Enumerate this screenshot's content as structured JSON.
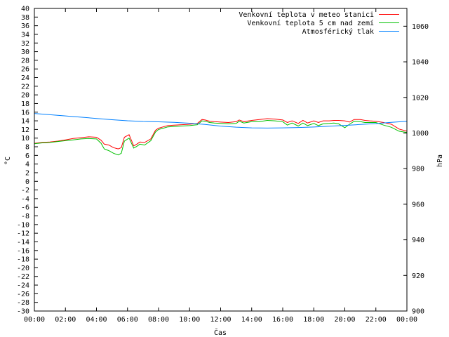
{
  "chart_data": {
    "type": "line",
    "title": "",
    "xlabel": "Čas",
    "ylabel": "°C",
    "y2label": "hPa",
    "grid": false,
    "legend_position": "top-right",
    "xlim": [
      0,
      24
    ],
    "ylim": [
      -30,
      40
    ],
    "y2lim": [
      900,
      1070
    ],
    "x_ticks": [
      "00:00",
      "02:00",
      "04:00",
      "06:00",
      "08:00",
      "10:00",
      "12:00",
      "14:00",
      "16:00",
      "18:00",
      "20:00",
      "22:00",
      "00:00"
    ],
    "y_ticks": [
      -30,
      -28,
      -26,
      -24,
      -22,
      -20,
      -18,
      -16,
      -14,
      -12,
      -10,
      -8,
      -6,
      -4,
      -2,
      0,
      2,
      4,
      6,
      8,
      10,
      12,
      14,
      16,
      18,
      20,
      22,
      24,
      26,
      28,
      30,
      32,
      34,
      36,
      38,
      40
    ],
    "y2_ticks": [
      900,
      920,
      940,
      960,
      980,
      1000,
      1020,
      1040,
      1060
    ],
    "series": [
      {
        "name": "Venkovní teplota v meteo stanici",
        "color": "#ff0000",
        "axis": "left",
        "x": [
          0,
          0.5,
          1,
          1.5,
          2,
          2.5,
          3,
          3.5,
          4,
          4.3,
          4.5,
          4.8,
          5.1,
          5.4,
          5.6,
          5.8,
          6.1,
          6.4,
          6.6,
          6.8,
          7.1,
          7.5,
          7.8,
          8,
          8.3,
          8.6,
          9,
          9.5,
          10,
          10.5,
          10.8,
          11,
          11.3,
          11.6,
          12,
          12.5,
          13,
          13.2,
          13.5,
          14,
          14.5,
          15,
          15.5,
          16,
          16.3,
          16.6,
          17,
          17.3,
          17.6,
          18,
          18.3,
          18.6,
          19,
          19.3,
          19.6,
          20,
          20.3,
          20.6,
          21,
          21.3,
          21.6,
          22,
          22.5,
          23,
          23.5,
          24
        ],
        "values": [
          8.8,
          9,
          9.1,
          9.3,
          9.6,
          9.9,
          10.1,
          10.3,
          10.2,
          9.5,
          8.6,
          8.4,
          7.8,
          7.5,
          7.8,
          10.2,
          10.8,
          8.2,
          8.6,
          9.1,
          9,
          9.8,
          11.8,
          12.3,
          12.6,
          12.9,
          13,
          13.1,
          13.2,
          13.4,
          14.3,
          14.2,
          13.9,
          13.8,
          13.7,
          13.6,
          13.8,
          14.2,
          13.8,
          14.1,
          14.3,
          14.5,
          14.4,
          14.2,
          13.6,
          14,
          13.4,
          14.1,
          13.5,
          14,
          13.6,
          14,
          14,
          14.1,
          14.1,
          14,
          13.7,
          14.3,
          14.3,
          14.1,
          14,
          13.9,
          13.6,
          13.2,
          12.1,
          11.6
        ]
      },
      {
        "name": "Venkovní teplota 5 cm nad zemí",
        "color": "#00c000",
        "axis": "left",
        "x": [
          0,
          0.5,
          1,
          1.5,
          2,
          2.5,
          3,
          3.5,
          4,
          4.3,
          4.5,
          4.8,
          5.1,
          5.4,
          5.6,
          5.8,
          6.1,
          6.4,
          6.6,
          6.8,
          7.1,
          7.5,
          7.8,
          8,
          8.3,
          8.6,
          9,
          9.5,
          10,
          10.5,
          10.8,
          11,
          11.3,
          11.6,
          12,
          12.5,
          13,
          13.2,
          13.5,
          14,
          14.5,
          15,
          15.5,
          16,
          16.3,
          16.6,
          17,
          17.3,
          17.6,
          18,
          18.3,
          18.6,
          19,
          19.3,
          19.6,
          20,
          20.3,
          20.6,
          21,
          21.3,
          21.6,
          22,
          22.5,
          23,
          23.5,
          24
        ],
        "values": [
          8.7,
          8.9,
          9,
          9.2,
          9.4,
          9.6,
          9.8,
          9.9,
          9.8,
          8.8,
          7.5,
          7.1,
          6.5,
          6.1,
          6.5,
          9.3,
          10,
          7.7,
          8.1,
          8.6,
          8.4,
          9.4,
          11.4,
          12,
          12.3,
          12.6,
          12.7,
          12.8,
          12.9,
          13.1,
          14,
          13.9,
          13.6,
          13.5,
          13.4,
          13.3,
          13.4,
          13.9,
          13.5,
          13.8,
          13.8,
          14.1,
          14,
          13.8,
          13,
          13.5,
          12.8,
          13.5,
          12.9,
          13.4,
          12.9,
          13.3,
          13.4,
          13.5,
          13.3,
          12.4,
          13.2,
          13.9,
          13.8,
          13.6,
          13.6,
          13.6,
          13,
          12.5,
          11.6,
          11.3
        ]
      },
      {
        "name": "Atmosférický tlak",
        "color": "#0080ff",
        "axis": "right",
        "x": [
          0,
          1,
          2,
          3,
          4,
          5,
          6,
          7,
          8,
          9,
          10,
          11,
          12,
          13,
          14,
          15,
          16,
          17,
          18,
          19,
          20,
          21,
          22,
          23,
          24
        ],
        "values": [
          1011,
          1010.3,
          1009.6,
          1008.9,
          1008.2,
          1007.5,
          1006.9,
          1006.5,
          1006.3,
          1006,
          1005.5,
          1004.8,
          1003.9,
          1003.3,
          1002.9,
          1002.8,
          1002.9,
          1003.1,
          1003.4,
          1003.8,
          1004.3,
          1004.8,
          1005.3,
          1006,
          1006.6
        ]
      }
    ]
  }
}
